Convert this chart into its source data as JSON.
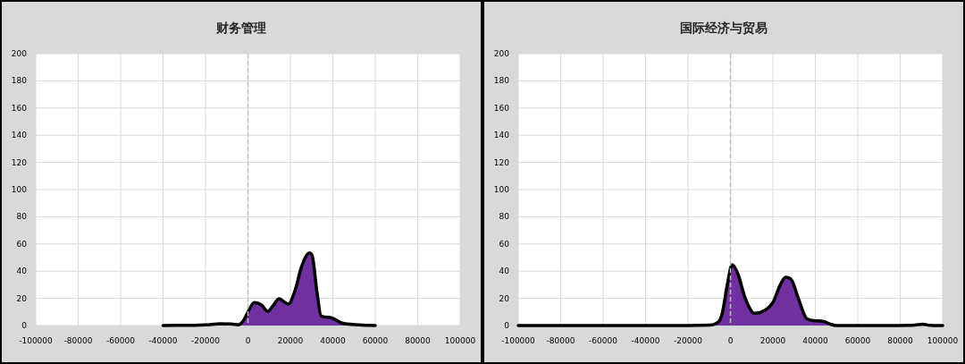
{
  "chart_data": [
    {
      "type": "area",
      "title": "财务管理",
      "xlim": [
        -100000,
        100000
      ],
      "xticks": [
        -100000,
        -80000,
        -60000,
        -40000,
        -20000,
        0,
        20000,
        40000,
        60000,
        80000,
        100000
      ],
      "ylim": [
        0,
        200
      ],
      "yticks": [
        0,
        20,
        40,
        60,
        80,
        100,
        120,
        140,
        160,
        180,
        200
      ],
      "grid": true,
      "ref_lines": [
        {
          "axis": "x",
          "value": 0,
          "color": "#bfbfbf",
          "line_style": "dashed"
        }
      ],
      "series": [
        {
          "color": "#7030a0",
          "x": [
            -40000,
            -20000,
            -13000,
            -7000,
            -4600,
            -2000,
            0,
            3000,
            6500,
            9300,
            12000,
            14700,
            17000,
            19000,
            22000,
            25000,
            27000,
            29000,
            30500,
            32500,
            34500,
            38700,
            44000,
            52600,
            60000
          ],
          "values": [
            0,
            0.5,
            1.3,
            1,
            0.5,
            4,
            10,
            17,
            15,
            10.5,
            15,
            19.7,
            17.5,
            15.8,
            25,
            42,
            50,
            53.5,
            50,
            25,
            7,
            6,
            2,
            0.5,
            0
          ]
        }
      ]
    },
    {
      "type": "area",
      "title": "国际经济与贸易",
      "xlim": [
        -100000,
        100000
      ],
      "xticks": [
        -100000,
        -80000,
        -60000,
        -40000,
        -20000,
        0,
        20000,
        40000,
        60000,
        80000,
        100000
      ],
      "ylim": [
        0,
        200
      ],
      "yticks": [
        0,
        20,
        40,
        60,
        80,
        100,
        120,
        140,
        160,
        180,
        200
      ],
      "grid": true,
      "ref_lines": [
        {
          "axis": "x",
          "value": 0,
          "color": "#bfbfbf",
          "line_style": "dashed"
        }
      ],
      "series": [
        {
          "color": "#7030a0",
          "x": [
            -100000,
            -20000,
            -10000,
            -7500,
            -4000,
            -1500,
            800,
            3500,
            7000,
            11400,
            16000,
            20000,
            23500,
            26000,
            29000,
            32000,
            36000,
            40000,
            44000,
            47000,
            50000,
            80000,
            87000,
            90500,
            94000,
            100000
          ],
          "values": [
            0,
            0,
            0.3,
            1,
            8,
            30,
            44.7,
            38,
            20,
            9,
            11,
            17,
            30,
            35.5,
            33,
            20,
            5,
            3.5,
            3,
            1,
            0,
            0,
            0.3,
            1,
            0.2,
            0
          ]
        }
      ]
    }
  ]
}
